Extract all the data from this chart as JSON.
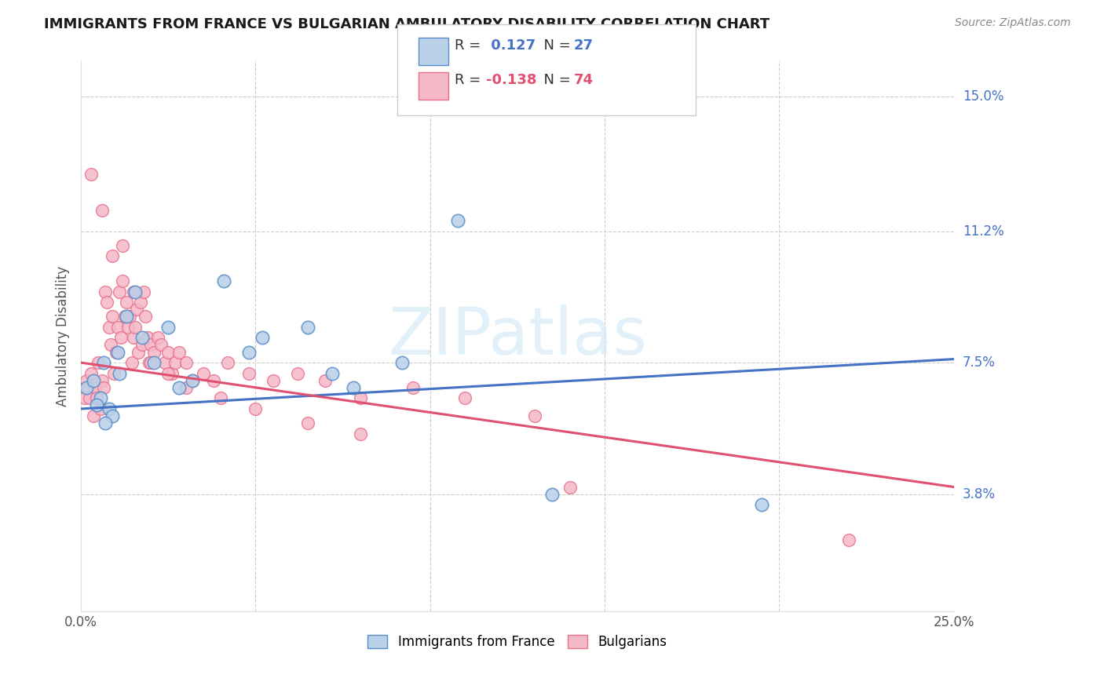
{
  "title": "IMMIGRANTS FROM FRANCE VS BULGARIAN AMBULATORY DISABILITY CORRELATION CHART",
  "source": "Source: ZipAtlas.com",
  "ylabel": "Ambulatory Disability",
  "right_yticks": [
    3.8,
    7.5,
    11.2,
    15.0
  ],
  "right_ytick_labels": [
    "3.8%",
    "7.5%",
    "11.2%",
    "15.0%"
  ],
  "blue_R": 0.127,
  "blue_N": 27,
  "pink_R": -0.138,
  "pink_N": 74,
  "blue_label": "Immigrants from France",
  "pink_label": "Bulgarians",
  "blue_face_color": "#b8d0e8",
  "pink_face_color": "#f5b8c8",
  "blue_edge_color": "#5b8fc9",
  "pink_edge_color": "#e8708a",
  "blue_line_color": "#4472c4",
  "pink_line_color": "#e05070",
  "background_color": "#ffffff",
  "watermark": "ZIPatlas",
  "xmin": 0.0,
  "xmax": 25.0,
  "ymin": 0.5,
  "ymax": 16.0,
  "blue_scatter_x": [
    0.15,
    0.35,
    0.55,
    0.65,
    0.8,
    0.9,
    1.05,
    1.3,
    1.55,
    1.75,
    2.1,
    2.5,
    3.2,
    4.1,
    5.2,
    6.5,
    7.8,
    9.2,
    10.8,
    13.5,
    19.5,
    0.45,
    0.7,
    1.1,
    2.8,
    4.8,
    7.2
  ],
  "blue_scatter_y": [
    6.8,
    7.0,
    6.5,
    7.5,
    6.2,
    6.0,
    7.8,
    8.8,
    9.5,
    8.2,
    7.5,
    8.5,
    7.0,
    9.8,
    8.2,
    8.5,
    6.8,
    7.5,
    11.5,
    3.8,
    3.5,
    6.3,
    5.8,
    7.2,
    6.8,
    7.8,
    7.2
  ],
  "pink_scatter_x": [
    0.1,
    0.15,
    0.2,
    0.25,
    0.3,
    0.35,
    0.4,
    0.45,
    0.5,
    0.55,
    0.6,
    0.65,
    0.7,
    0.75,
    0.8,
    0.85,
    0.9,
    0.95,
    1.0,
    1.05,
    1.1,
    1.15,
    1.2,
    1.25,
    1.3,
    1.35,
    1.4,
    1.45,
    1.5,
    1.55,
    1.6,
    1.65,
    1.7,
    1.75,
    1.8,
    1.85,
    1.9,
    1.95,
    2.0,
    2.1,
    2.2,
    2.3,
    2.4,
    2.5,
    2.6,
    2.7,
    2.8,
    3.0,
    3.2,
    3.5,
    3.8,
    4.2,
    4.8,
    5.5,
    6.2,
    7.0,
    8.0,
    9.5,
    11.0,
    13.0,
    0.3,
    0.6,
    0.9,
    1.2,
    1.5,
    2.0,
    2.5,
    3.0,
    4.0,
    5.0,
    6.5,
    8.0,
    22.0,
    14.0
  ],
  "pink_scatter_y": [
    6.5,
    7.0,
    6.8,
    6.5,
    7.2,
    6.0,
    6.8,
    6.5,
    7.5,
    6.2,
    7.0,
    6.8,
    9.5,
    9.2,
    8.5,
    8.0,
    8.8,
    7.2,
    7.8,
    8.5,
    9.5,
    8.2,
    9.8,
    8.8,
    9.2,
    8.5,
    8.8,
    7.5,
    8.2,
    8.5,
    9.0,
    7.8,
    9.2,
    8.0,
    9.5,
    8.8,
    8.2,
    7.5,
    8.0,
    7.8,
    8.2,
    8.0,
    7.5,
    7.8,
    7.2,
    7.5,
    7.8,
    7.5,
    7.0,
    7.2,
    7.0,
    7.5,
    7.2,
    7.0,
    7.2,
    7.0,
    6.5,
    6.8,
    6.5,
    6.0,
    12.8,
    11.8,
    10.5,
    10.8,
    9.5,
    7.5,
    7.2,
    6.8,
    6.5,
    6.2,
    5.8,
    5.5,
    2.5,
    4.0
  ],
  "blue_trend_x": [
    0.0,
    25.0
  ],
  "blue_trend_y": [
    6.2,
    7.6
  ],
  "pink_trend_x": [
    0.0,
    25.0
  ],
  "pink_trend_y": [
    7.5,
    4.0
  ]
}
